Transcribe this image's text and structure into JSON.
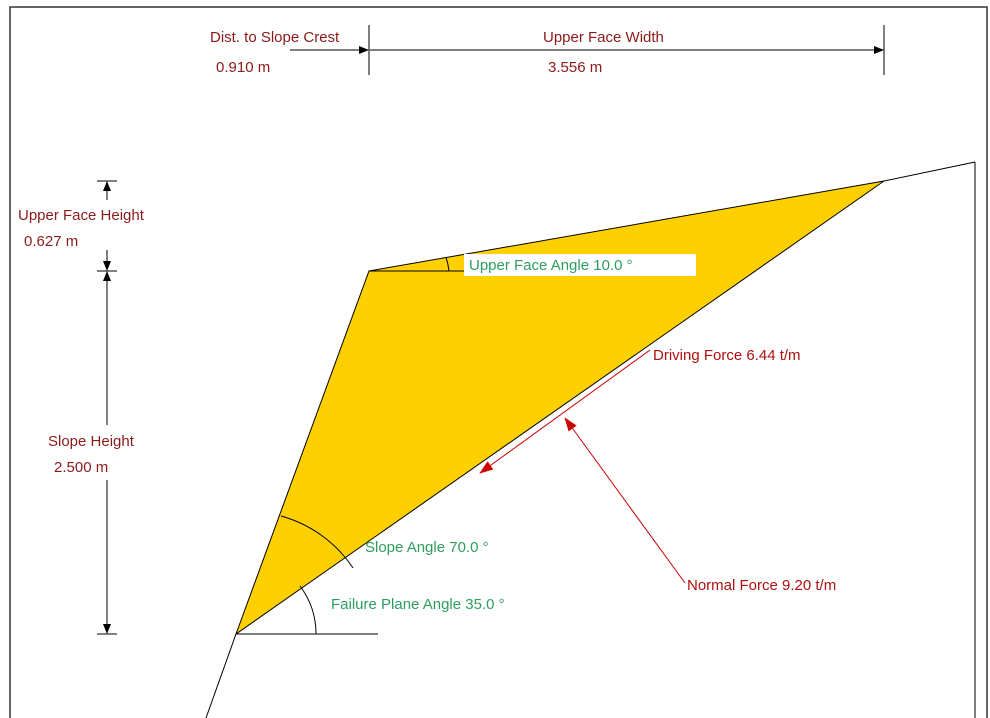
{
  "dimensions": {
    "dist_to_crest": {
      "label": "Dist. to Slope Crest",
      "value": "0.910 m"
    },
    "upper_face_width": {
      "label": "Upper Face Width",
      "value": "3.556 m"
    },
    "upper_face_height": {
      "label": "Upper Face Height",
      "value": "0.627 m"
    },
    "slope_height": {
      "label": "Slope Height",
      "value": "2.500 m"
    }
  },
  "angles": {
    "upper_face": "Upper Face Angle 10.0 °",
    "slope": "Slope Angle 70.0 °",
    "failure_plane": "Failure Plane Angle 35.0 °"
  },
  "forces": {
    "driving": "Driving Force 6.44 t/m",
    "normal": "Normal Force 9.20 t/m"
  }
}
